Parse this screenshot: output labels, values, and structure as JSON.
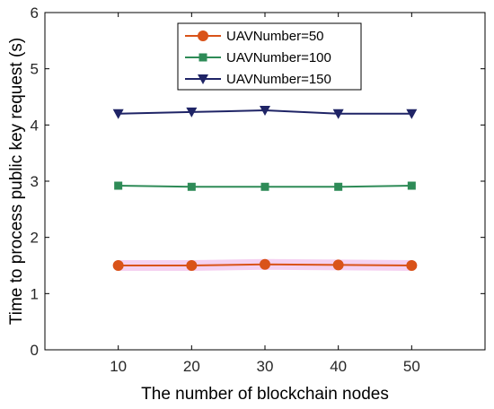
{
  "chart_data": {
    "type": "line",
    "x": [
      10,
      20,
      30,
      40,
      50
    ],
    "series": [
      {
        "name": "UAVNumber=50",
        "values": [
          1.5,
          1.5,
          1.52,
          1.51,
          1.5
        ],
        "color": "#d95319",
        "marker": "circle"
      },
      {
        "name": "UAVNumber=100",
        "values": [
          2.92,
          2.9,
          2.9,
          2.9,
          2.92
        ],
        "color": "#2e8b57",
        "marker": "square"
      },
      {
        "name": "UAVNumber=150",
        "values": [
          4.2,
          4.23,
          4.26,
          4.2,
          4.2
        ],
        "color": "#1f2466",
        "marker": "triangle-down"
      }
    ],
    "xlabel": "The number of blockchain nodes",
    "ylabel": "Time to process public key request (s)",
    "xlim": [
      0,
      60
    ],
    "ylim": [
      0,
      6
    ],
    "xticks": [
      "10",
      "20",
      "30",
      "40",
      "50"
    ],
    "yticks": [
      "0",
      "1",
      "2",
      "3",
      "4",
      "5",
      "6"
    ],
    "legend_position": "top-center",
    "grid": false
  }
}
